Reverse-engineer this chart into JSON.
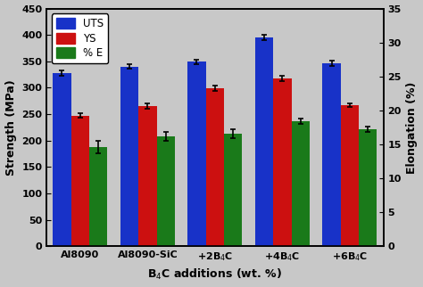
{
  "categories": [
    "Al8090",
    "Al8090-SiC",
    "+2B$_4$C",
    "+4B$_4$C",
    "+6B$_4$C"
  ],
  "xlabel": "B$_4$C additions (wt. %)",
  "ylabel_left": "Strength (MPa)",
  "ylabel_right": "Elongation (%)",
  "ylim_left": [
    0,
    450
  ],
  "ylim_right": [
    0,
    35
  ],
  "yticks_left": [
    0,
    50,
    100,
    150,
    200,
    250,
    300,
    350,
    400,
    450
  ],
  "yticks_right": [
    0,
    5,
    10,
    15,
    20,
    25,
    30,
    35
  ],
  "series": {
    "UTS": {
      "values": [
        328,
        340,
        349,
        395,
        347
      ],
      "errors": [
        5,
        4,
        4,
        5,
        5
      ],
      "color": "#1832C8"
    },
    "YS": {
      "values": [
        247,
        265,
        299,
        318,
        267
      ],
      "errors": [
        4,
        5,
        5,
        5,
        4
      ],
      "color": "#CC1010"
    },
    "% E": {
      "values": [
        188,
        208,
        213,
        237,
        222
      ],
      "errors": [
        12,
        8,
        8,
        5,
        5
      ],
      "color": "#1A7A1A"
    }
  },
  "legend_labels": [
    "UTS",
    "YS",
    "% E"
  ],
  "bar_width": 0.27,
  "background_color": "#c8c8c8",
  "plot_bg_color": "#c8c8c8",
  "figsize": [
    4.74,
    3.22
  ],
  "dpi": 100,
  "tick_label_fontsize": 8.0,
  "axis_label_fontsize": 9.0
}
